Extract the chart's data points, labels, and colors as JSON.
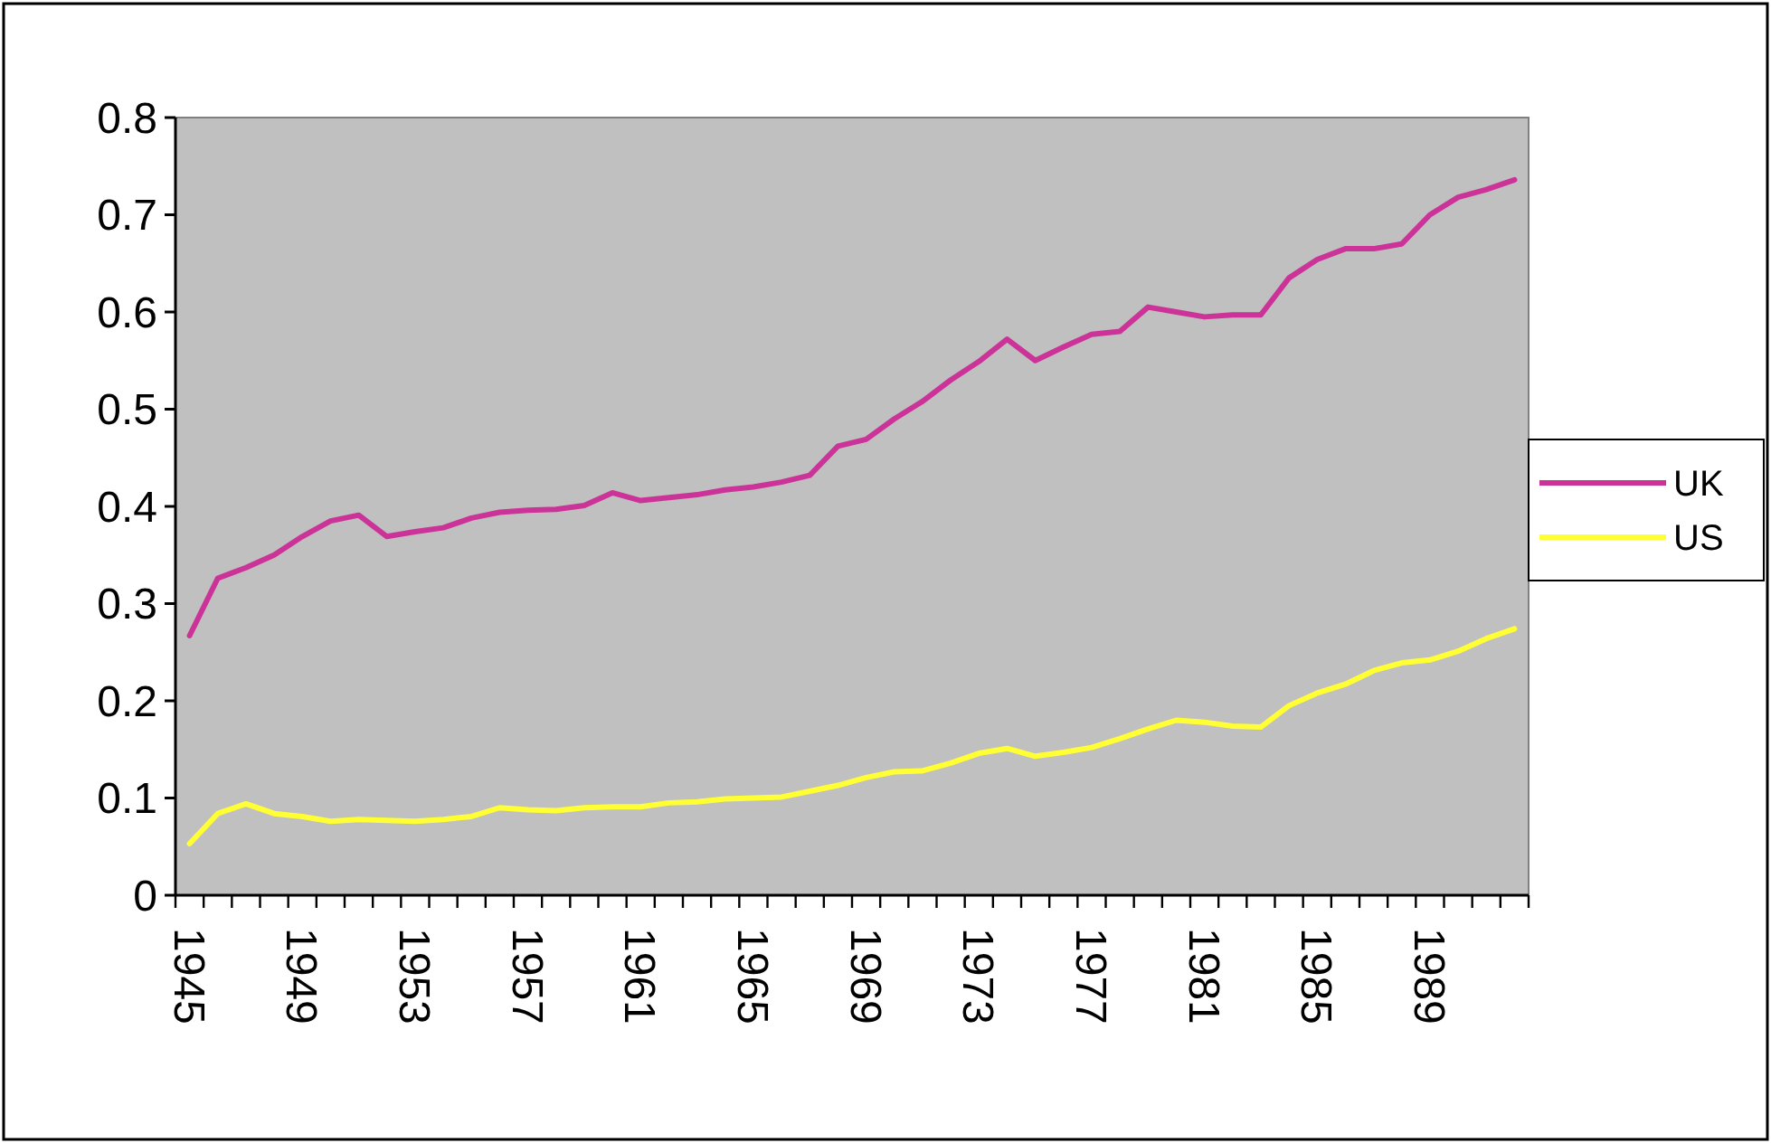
{
  "chart_data": {
    "type": "line",
    "categories": [
      "1945",
      null,
      null,
      null,
      "1949",
      null,
      null,
      null,
      "1953",
      null,
      null,
      null,
      "1957",
      null,
      null,
      null,
      "1961",
      null,
      null,
      null,
      "1965",
      null,
      null,
      null,
      "1969",
      null,
      null,
      null,
      "1973",
      null,
      null,
      null,
      "1977",
      null,
      null,
      null,
      "1981",
      null,
      null,
      null,
      "1985",
      null,
      null,
      null,
      "1989",
      null,
      null,
      null
    ],
    "series": [
      {
        "name": "UK",
        "color": "#cc3399",
        "values": [
          0.267,
          0.326,
          0.337,
          0.35,
          0.369,
          0.385,
          0.391,
          0.369,
          0.374,
          0.378,
          0.388,
          0.394,
          0.396,
          0.397,
          0.401,
          0.414,
          0.406,
          0.409,
          0.412,
          0.417,
          0.42,
          0.425,
          0.432,
          0.462,
          0.469,
          0.49,
          0.508,
          0.53,
          0.549,
          0.572,
          0.55,
          0.564,
          0.577,
          0.58,
          0.605,
          0.6,
          0.595,
          0.597,
          0.597,
          0.635,
          0.654,
          0.665,
          0.665,
          0.67,
          0.7,
          0.718,
          0.726,
          0.736
        ]
      },
      {
        "name": "US",
        "color": "#ffff33",
        "values": [
          0.053,
          0.084,
          0.094,
          0.084,
          0.081,
          0.076,
          0.078,
          0.077,
          0.076,
          0.078,
          0.081,
          0.09,
          0.088,
          0.087,
          0.09,
          0.091,
          0.091,
          0.095,
          0.096,
          0.099,
          0.1,
          0.101,
          0.107,
          0.113,
          0.121,
          0.127,
          0.128,
          0.136,
          0.146,
          0.151,
          0.143,
          0.147,
          0.152,
          0.161,
          0.171,
          0.18,
          0.178,
          0.174,
          0.173,
          0.195,
          0.208,
          0.217,
          0.231,
          0.239,
          0.242,
          0.251,
          0.264,
          0.274
        ]
      }
    ],
    "ylim": [
      0,
      0.8
    ],
    "yticks": [
      0,
      0.1,
      0.2,
      0.3,
      0.4,
      0.5,
      0.6,
      0.7,
      0.8
    ],
    "grid": false,
    "legend": "right",
    "marker": "none",
    "line_style": "solid"
  }
}
